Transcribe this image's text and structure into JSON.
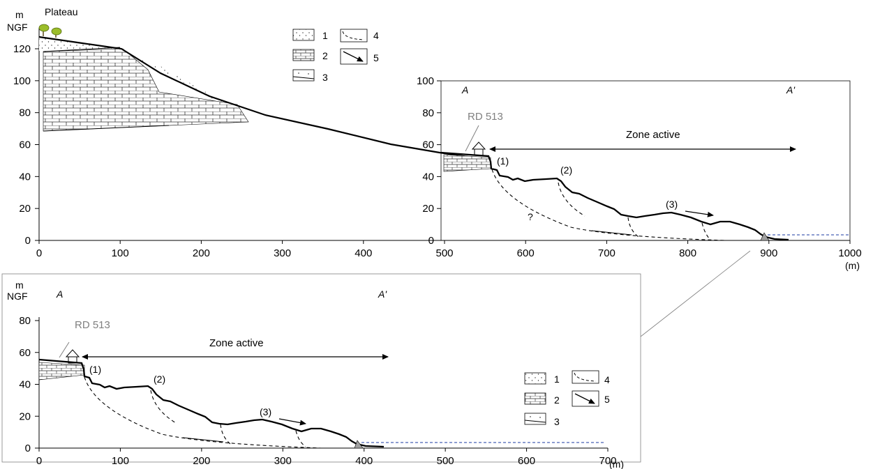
{
  "top": {
    "y_unit": "m",
    "y_unit2": "NGF",
    "plateau": "Plateau",
    "y_ticks": [
      "0",
      "20",
      "40",
      "60",
      "80",
      "100",
      "120"
    ],
    "x_ticks": [
      "0",
      "100",
      "200",
      "300",
      "400",
      "500",
      "600",
      "700",
      "800",
      "900",
      "1000"
    ],
    "x_unit": "(m)"
  },
  "inset": {
    "y_ticks": [
      "0",
      "20",
      "40",
      "60",
      "80",
      "100"
    ],
    "label_a": "A",
    "label_a2": "A'",
    "road": "RD 513",
    "zone": "Zone active",
    "m1": "(1)",
    "m2": "(2)",
    "m3": "(3)",
    "question": "?"
  },
  "bottom": {
    "y_unit": "m",
    "y_unit2": "NGF",
    "label_a": "A",
    "label_a2": "A'",
    "road": "RD 513",
    "zone": "Zone active",
    "m1": "(1)",
    "m2": "(2)",
    "m3": "(3)",
    "y_ticks": [
      "0",
      "20",
      "40",
      "60",
      "80"
    ],
    "x_ticks": [
      "0",
      "100",
      "200",
      "300",
      "400",
      "500",
      "600",
      "700"
    ],
    "x_unit": "(m)"
  },
  "legend": {
    "items": [
      "1",
      "2",
      "3",
      "4",
      "5"
    ]
  }
}
